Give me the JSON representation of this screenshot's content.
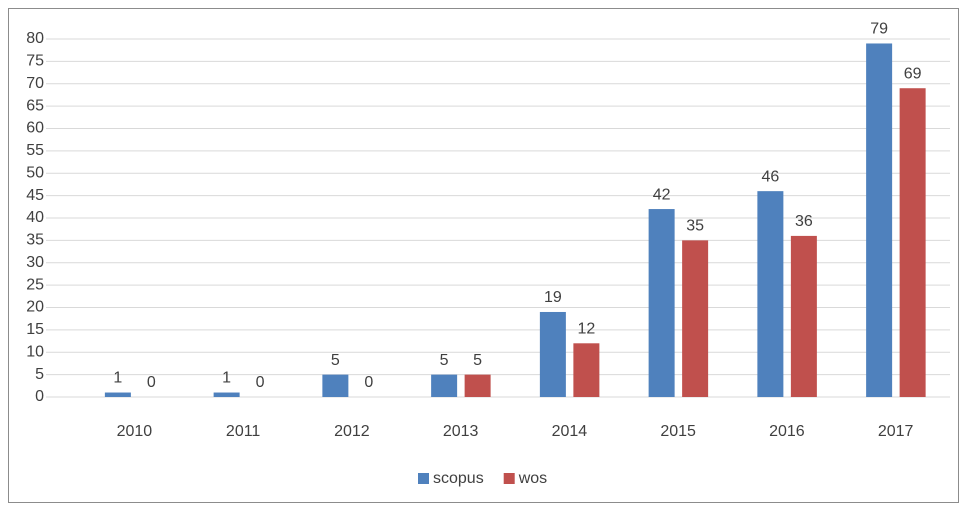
{
  "chart_data": {
    "type": "bar",
    "categories": [
      "2010",
      "2011",
      "2012",
      "2013",
      "2014",
      "2015",
      "2016",
      "2017"
    ],
    "series": [
      {
        "name": "scopus",
        "color": "#4f81bd",
        "values": [
          1,
          1,
          5,
          5,
          19,
          42,
          46,
          79
        ]
      },
      {
        "name": "wos",
        "color": "#c0504d",
        "values": [
          0,
          0,
          0,
          5,
          12,
          35,
          36,
          69
        ]
      }
    ],
    "ylim": [
      0,
      80
    ],
    "yticks": [
      0,
      5,
      10,
      15,
      20,
      25,
      30,
      35,
      40,
      45,
      50,
      55,
      60,
      65,
      70,
      75,
      80
    ],
    "grid": true,
    "legend": "bottom"
  }
}
